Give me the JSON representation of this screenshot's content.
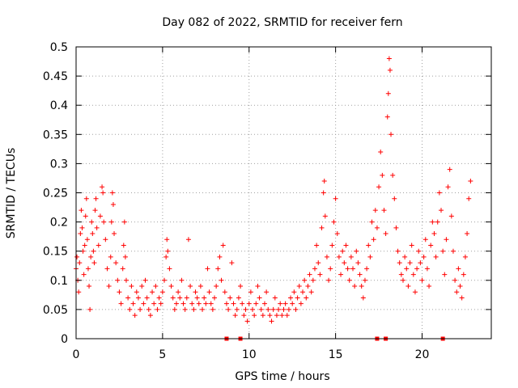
{
  "chart_data": {
    "type": "scatter",
    "title": "Day 082 of 2022, SRMTID for receiver fern",
    "xlabel": "GPS time / hours",
    "ylabel": "SRMTID / TECUs",
    "xlim": [
      0,
      24
    ],
    "ylim": [
      0,
      0.5
    ],
    "xticks": [
      0,
      5,
      10,
      15,
      20
    ],
    "xtick_labels": [
      "0",
      "5",
      "10",
      "15",
      "20"
    ],
    "yticks": [
      0,
      0.05,
      0.1,
      0.15,
      0.2,
      0.25,
      0.3,
      0.35,
      0.4,
      0.45,
      0.5
    ],
    "ytick_labels": [
      "0",
      "0.05",
      "0.1",
      "0.15",
      "0.2",
      "0.25",
      "0.3",
      "0.35",
      "0.4",
      "0.45",
      "0.5"
    ],
    "grid": true,
    "marker": "plus",
    "marker_color": "#ff0000",
    "series": [
      {
        "points": [
          [
            0.0,
            0.12
          ],
          [
            0.05,
            0.14
          ],
          [
            0.1,
            0.1
          ],
          [
            0.15,
            0.08
          ],
          [
            0.2,
            0.13
          ],
          [
            0.25,
            0.18
          ],
          [
            0.3,
            0.22
          ],
          [
            0.35,
            0.19
          ],
          [
            0.4,
            0.15
          ],
          [
            0.45,
            0.11
          ],
          [
            0.5,
            0.16
          ],
          [
            0.55,
            0.21
          ],
          [
            0.6,
            0.24
          ],
          [
            0.65,
            0.17
          ],
          [
            0.7,
            0.12
          ],
          [
            0.75,
            0.09
          ],
          [
            0.8,
            0.05
          ],
          [
            0.85,
            0.14
          ],
          [
            0.9,
            0.2
          ],
          [
            0.95,
            0.18
          ],
          [
            1.0,
            0.15
          ],
          [
            1.05,
            0.13
          ],
          [
            1.1,
            0.22
          ],
          [
            1.15,
            0.24
          ],
          [
            1.2,
            0.19
          ],
          [
            1.3,
            0.16
          ],
          [
            1.4,
            0.21
          ],
          [
            1.5,
            0.26
          ],
          [
            1.55,
            0.25
          ],
          [
            1.6,
            0.2
          ],
          [
            1.7,
            0.17
          ],
          [
            1.8,
            0.12
          ],
          [
            1.9,
            0.09
          ],
          [
            2.0,
            0.14
          ],
          [
            2.05,
            0.2
          ],
          [
            2.1,
            0.25
          ],
          [
            2.15,
            0.23
          ],
          [
            2.2,
            0.18
          ],
          [
            2.3,
            0.13
          ],
          [
            2.4,
            0.1
          ],
          [
            2.5,
            0.08
          ],
          [
            2.6,
            0.06
          ],
          [
            2.7,
            0.12
          ],
          [
            2.75,
            0.16
          ],
          [
            2.8,
            0.2
          ],
          [
            2.85,
            0.14
          ],
          [
            2.9,
            0.1
          ],
          [
            3.0,
            0.07
          ],
          [
            3.1,
            0.05
          ],
          [
            3.2,
            0.09
          ],
          [
            3.3,
            0.06
          ],
          [
            3.4,
            0.04
          ],
          [
            3.5,
            0.08
          ],
          [
            3.6,
            0.07
          ],
          [
            3.7,
            0.05
          ],
          [
            3.8,
            0.09
          ],
          [
            3.9,
            0.06
          ],
          [
            4.0,
            0.1
          ],
          [
            4.1,
            0.07
          ],
          [
            4.2,
            0.05
          ],
          [
            4.3,
            0.04
          ],
          [
            4.4,
            0.08
          ],
          [
            4.5,
            0.06
          ],
          [
            4.6,
            0.09
          ],
          [
            4.7,
            0.05
          ],
          [
            4.8,
            0.07
          ],
          [
            4.9,
            0.06
          ],
          [
            5.0,
            0.08
          ],
          [
            5.1,
            0.1
          ],
          [
            5.2,
            0.14
          ],
          [
            5.25,
            0.17
          ],
          [
            5.3,
            0.15
          ],
          [
            5.4,
            0.12
          ],
          [
            5.5,
            0.09
          ],
          [
            5.6,
            0.07
          ],
          [
            5.7,
            0.05
          ],
          [
            5.8,
            0.06
          ],
          [
            5.9,
            0.08
          ],
          [
            6.0,
            0.07
          ],
          [
            6.1,
            0.1
          ],
          [
            6.2,
            0.06
          ],
          [
            6.3,
            0.05
          ],
          [
            6.4,
            0.07
          ],
          [
            6.5,
            0.17
          ],
          [
            6.6,
            0.09
          ],
          [
            6.7,
            0.06
          ],
          [
            6.8,
            0.05
          ],
          [
            6.9,
            0.08
          ],
          [
            7.0,
            0.07
          ],
          [
            7.1,
            0.06
          ],
          [
            7.2,
            0.09
          ],
          [
            7.3,
            0.05
          ],
          [
            7.4,
            0.07
          ],
          [
            7.5,
            0.06
          ],
          [
            7.6,
            0.12
          ],
          [
            7.7,
            0.08
          ],
          [
            7.8,
            0.06
          ],
          [
            7.9,
            0.05
          ],
          [
            8.0,
            0.07
          ],
          [
            8.1,
            0.09
          ],
          [
            8.2,
            0.12
          ],
          [
            8.3,
            0.14
          ],
          [
            8.4,
            0.1
          ],
          [
            8.5,
            0.16
          ],
          [
            8.6,
            0.08
          ],
          [
            8.7,
            0.06
          ],
          [
            8.8,
            0.05
          ],
          [
            8.9,
            0.07
          ],
          [
            9.0,
            0.13
          ],
          [
            9.1,
            0.06
          ],
          [
            9.2,
            0.04
          ],
          [
            9.3,
            0.05
          ],
          [
            9.4,
            0.07
          ],
          [
            9.5,
            0.09
          ],
          [
            9.6,
            0.06
          ],
          [
            9.7,
            0.04
          ],
          [
            9.8,
            0.05
          ],
          [
            9.9,
            0.03
          ],
          [
            10.0,
            0.06
          ],
          [
            10.1,
            0.08
          ],
          [
            10.2,
            0.05
          ],
          [
            10.3,
            0.04
          ],
          [
            10.4,
            0.06
          ],
          [
            10.5,
            0.09
          ],
          [
            10.6,
            0.07
          ],
          [
            10.7,
            0.05
          ],
          [
            10.8,
            0.04
          ],
          [
            10.9,
            0.06
          ],
          [
            11.0,
            0.08
          ],
          [
            11.1,
            0.05
          ],
          [
            11.2,
            0.04
          ],
          [
            11.3,
            0.03
          ],
          [
            11.4,
            0.05
          ],
          [
            11.5,
            0.07
          ],
          [
            11.6,
            0.04
          ],
          [
            11.7,
            0.05
          ],
          [
            11.8,
            0.06
          ],
          [
            11.9,
            0.04
          ],
          [
            12.0,
            0.05
          ],
          [
            12.1,
            0.06
          ],
          [
            12.2,
            0.04
          ],
          [
            12.3,
            0.05
          ],
          [
            12.4,
            0.07
          ],
          [
            12.5,
            0.06
          ],
          [
            12.6,
            0.08
          ],
          [
            12.7,
            0.05
          ],
          [
            12.8,
            0.07
          ],
          [
            12.9,
            0.09
          ],
          [
            13.0,
            0.06
          ],
          [
            13.1,
            0.08
          ],
          [
            13.2,
            0.1
          ],
          [
            13.3,
            0.07
          ],
          [
            13.4,
            0.09
          ],
          [
            13.5,
            0.11
          ],
          [
            13.6,
            0.08
          ],
          [
            13.7,
            0.1
          ],
          [
            13.8,
            0.12
          ],
          [
            13.9,
            0.16
          ],
          [
            14.0,
            0.13
          ],
          [
            14.1,
            0.11
          ],
          [
            14.2,
            0.19
          ],
          [
            14.3,
            0.25
          ],
          [
            14.35,
            0.27
          ],
          [
            14.4,
            0.21
          ],
          [
            14.5,
            0.14
          ],
          [
            14.6,
            0.1
          ],
          [
            14.7,
            0.12
          ],
          [
            14.8,
            0.16
          ],
          [
            14.9,
            0.2
          ],
          [
            15.0,
            0.24
          ],
          [
            15.1,
            0.18
          ],
          [
            15.2,
            0.14
          ],
          [
            15.3,
            0.11
          ],
          [
            15.4,
            0.15
          ],
          [
            15.5,
            0.13
          ],
          [
            15.6,
            0.16
          ],
          [
            15.7,
            0.12
          ],
          [
            15.8,
            0.1
          ],
          [
            15.9,
            0.14
          ],
          [
            16.0,
            0.12
          ],
          [
            16.1,
            0.09
          ],
          [
            16.2,
            0.15
          ],
          [
            16.3,
            0.13
          ],
          [
            16.4,
            0.11
          ],
          [
            16.5,
            0.09
          ],
          [
            16.6,
            0.07
          ],
          [
            16.7,
            0.1
          ],
          [
            16.8,
            0.12
          ],
          [
            16.9,
            0.16
          ],
          [
            17.0,
            0.14
          ],
          [
            17.1,
            0.2
          ],
          [
            17.2,
            0.17
          ],
          [
            17.3,
            0.22
          ],
          [
            17.4,
            0.19
          ],
          [
            17.5,
            0.26
          ],
          [
            17.6,
            0.32
          ],
          [
            17.7,
            0.28
          ],
          [
            17.8,
            0.22
          ],
          [
            17.9,
            0.18
          ],
          [
            18.0,
            0.38
          ],
          [
            18.05,
            0.42
          ],
          [
            18.1,
            0.48
          ],
          [
            18.15,
            0.46
          ],
          [
            18.2,
            0.35
          ],
          [
            18.3,
            0.28
          ],
          [
            18.4,
            0.24
          ],
          [
            18.5,
            0.19
          ],
          [
            18.6,
            0.15
          ],
          [
            18.7,
            0.13
          ],
          [
            18.8,
            0.11
          ],
          [
            18.9,
            0.1
          ],
          [
            19.0,
            0.14
          ],
          [
            19.1,
            0.12
          ],
          [
            19.2,
            0.09
          ],
          [
            19.3,
            0.13
          ],
          [
            19.4,
            0.16
          ],
          [
            19.5,
            0.11
          ],
          [
            19.6,
            0.08
          ],
          [
            19.7,
            0.12
          ],
          [
            19.8,
            0.15
          ],
          [
            19.9,
            0.13
          ],
          [
            20.0,
            0.1
          ],
          [
            20.1,
            0.14
          ],
          [
            20.2,
            0.17
          ],
          [
            20.3,
            0.12
          ],
          [
            20.4,
            0.09
          ],
          [
            20.5,
            0.16
          ],
          [
            20.6,
            0.2
          ],
          [
            20.7,
            0.18
          ],
          [
            20.8,
            0.14
          ],
          [
            20.9,
            0.2
          ],
          [
            21.0,
            0.25
          ],
          [
            21.1,
            0.22
          ],
          [
            21.2,
            0.15
          ],
          [
            21.3,
            0.11
          ],
          [
            21.4,
            0.17
          ],
          [
            21.5,
            0.26
          ],
          [
            21.6,
            0.29
          ],
          [
            21.7,
            0.21
          ],
          [
            21.8,
            0.15
          ],
          [
            21.9,
            0.1
          ],
          [
            22.0,
            0.08
          ],
          [
            22.1,
            0.12
          ],
          [
            22.2,
            0.09
          ],
          [
            22.3,
            0.07
          ],
          [
            22.4,
            0.11
          ],
          [
            22.5,
            0.14
          ],
          [
            22.6,
            0.18
          ],
          [
            22.7,
            0.24
          ],
          [
            22.8,
            0.27
          ]
        ]
      },
      {
        "name": "",
        "marker": "square",
        "points": [
          [
            8.7,
            0.0
          ],
          [
            9.5,
            0.0
          ],
          [
            17.4,
            0.0
          ],
          [
            17.9,
            0.0
          ],
          [
            21.2,
            0.0
          ]
        ]
      }
    ]
  }
}
